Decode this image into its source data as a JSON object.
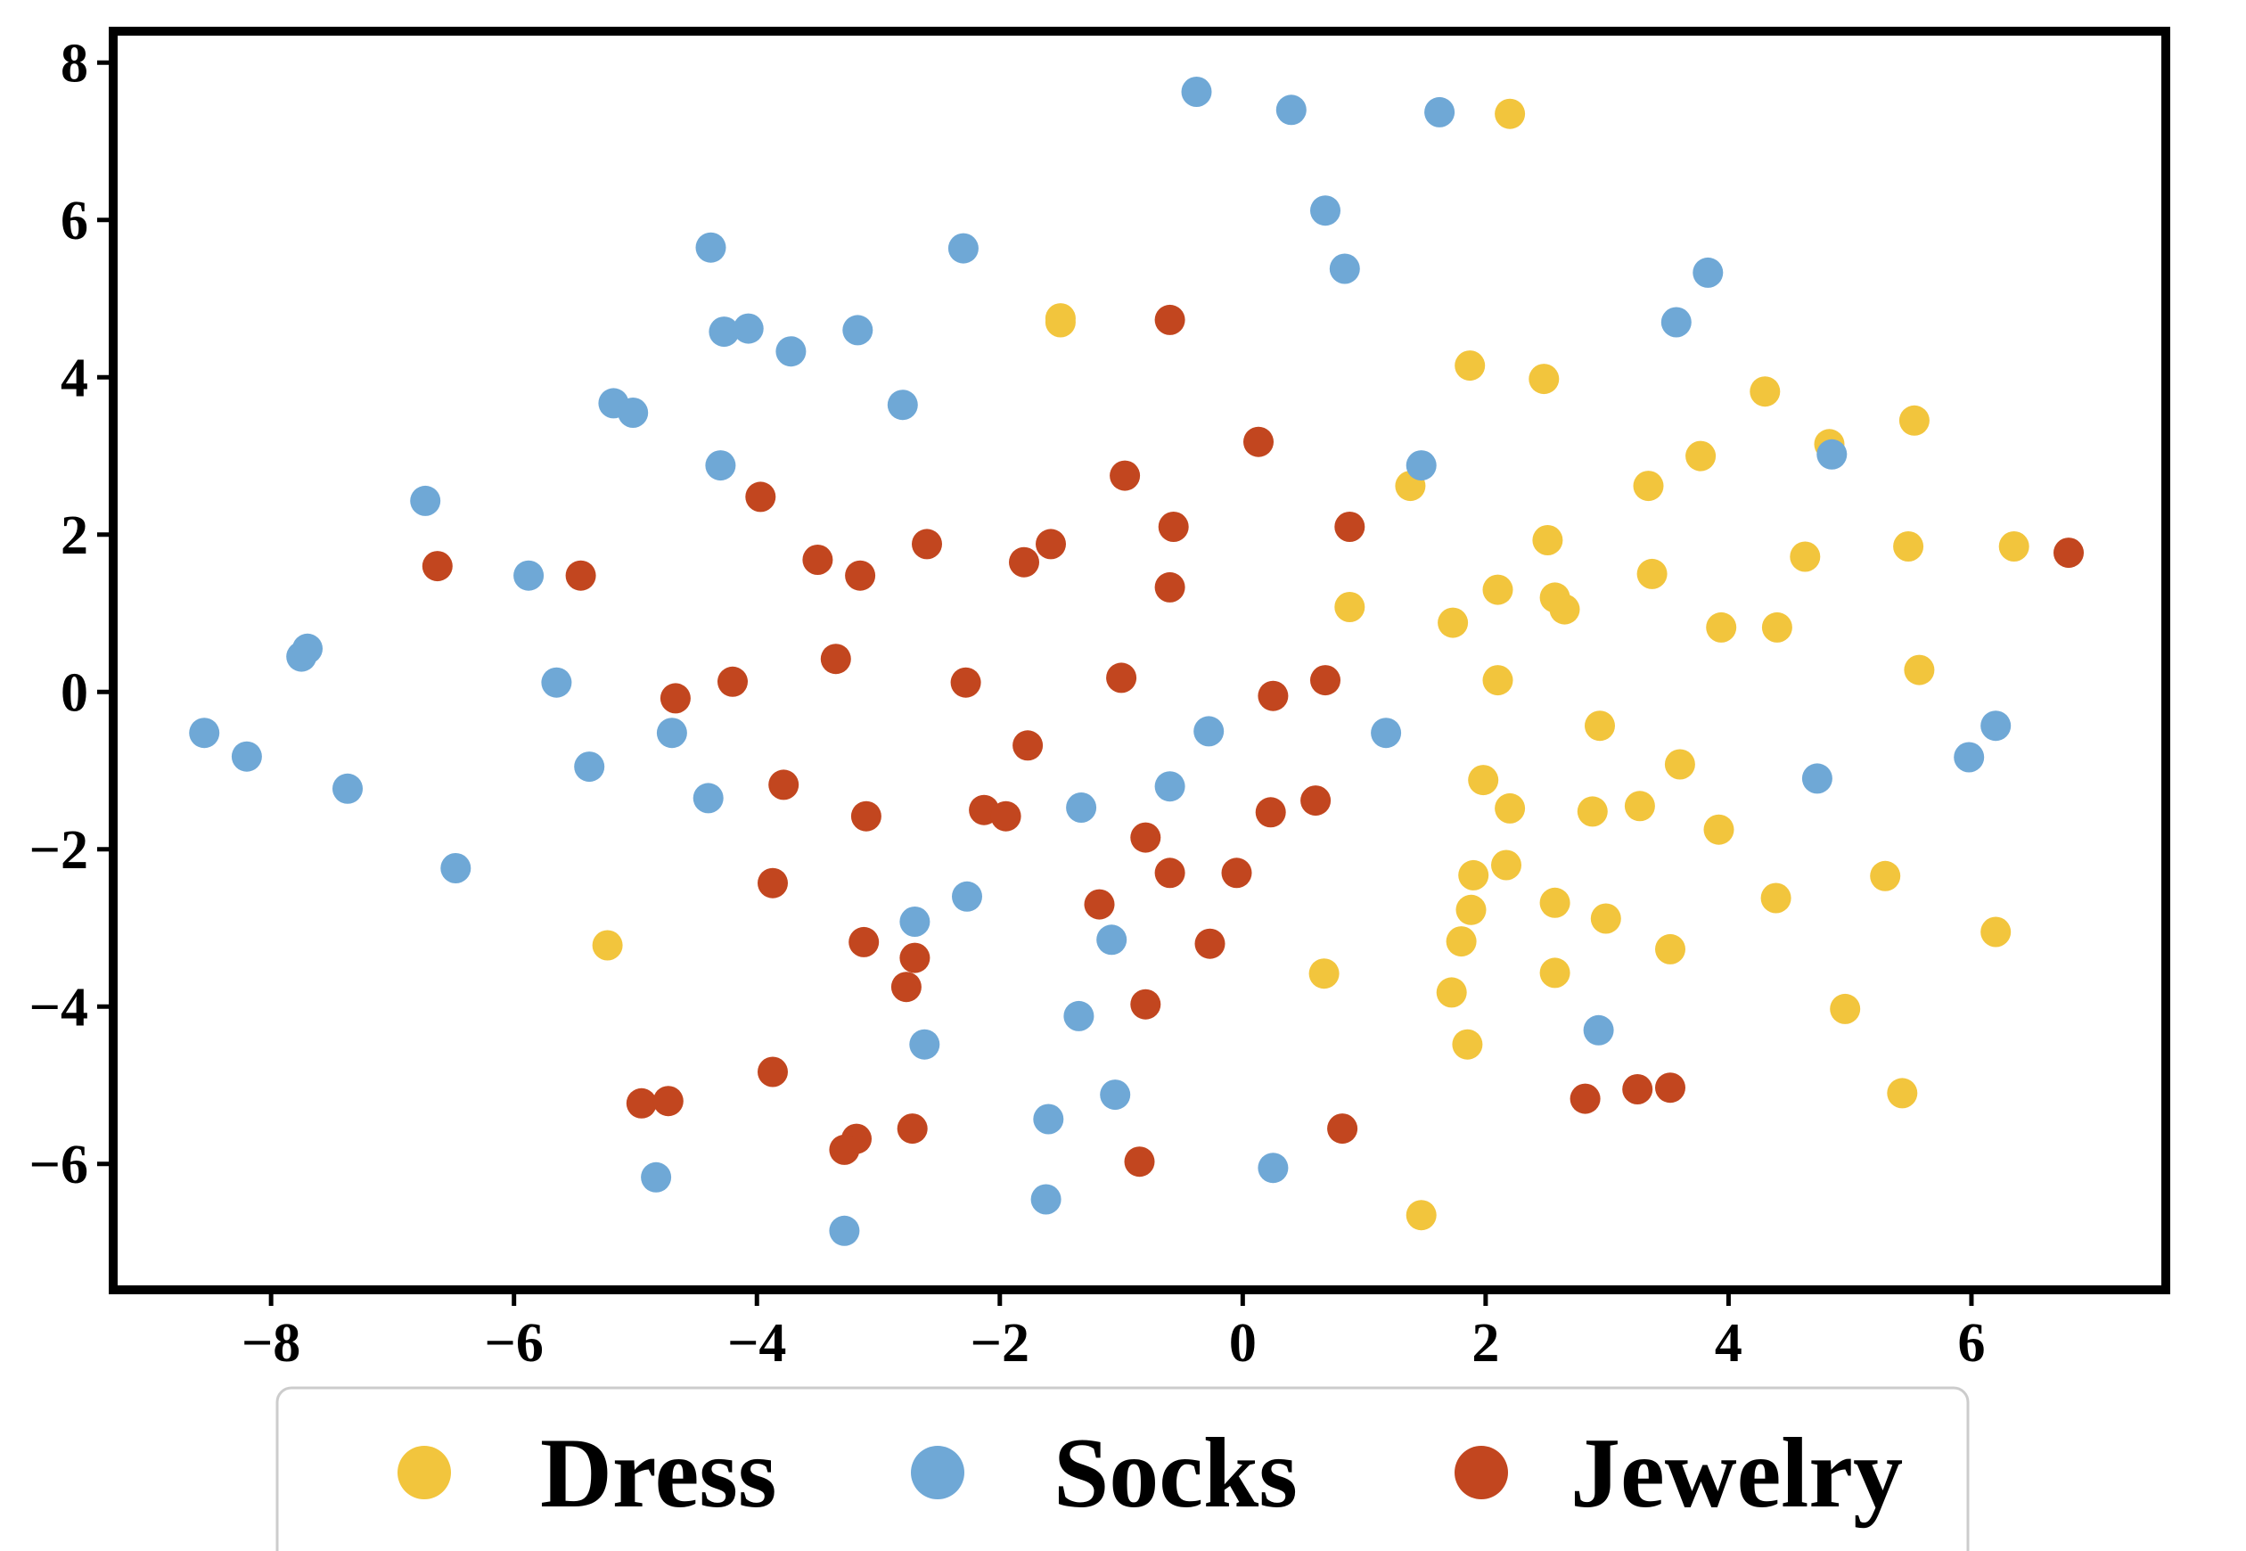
{
  "chart_data": {
    "type": "scatter",
    "title": "",
    "xlabel": "",
    "ylabel": "",
    "xlim": [
      -9.3,
      7.6
    ],
    "ylim": [
      -7.6,
      8.4
    ],
    "x_ticks": [
      -8,
      -6,
      -4,
      -2,
      0,
      2,
      4,
      6
    ],
    "y_ticks": [
      -6,
      -4,
      -2,
      0,
      2,
      4,
      6,
      8
    ],
    "x_tick_labels": [
      "−8",
      "−6",
      "−4",
      "−2",
      "0",
      "2",
      "4",
      "6"
    ],
    "y_tick_labels": [
      "−6",
      "−4",
      "−2",
      "0",
      "2",
      "4",
      "6",
      "8"
    ],
    "grid": false,
    "legend_position": "bottom",
    "series": [
      {
        "name": "Dress",
        "color": "#F2C53D",
        "points": [
          [
            2.2,
            7.35
          ],
          [
            -1.5,
            4.75
          ],
          [
            -1.5,
            4.7
          ],
          [
            1.87,
            4.15
          ],
          [
            2.48,
            3.98
          ],
          [
            4.3,
            3.82
          ],
          [
            4.83,
            3.15
          ],
          [
            5.53,
            3.45
          ],
          [
            3.77,
            3.0
          ],
          [
            1.38,
            2.62
          ],
          [
            3.34,
            2.62
          ],
          [
            2.51,
            1.93
          ],
          [
            5.48,
            1.85
          ],
          [
            6.35,
            1.85
          ],
          [
            4.63,
            1.72
          ],
          [
            3.37,
            1.5
          ],
          [
            2.1,
            1.3
          ],
          [
            2.57,
            1.2
          ],
          [
            2.65,
            1.05
          ],
          [
            0.88,
            1.08
          ],
          [
            1.73,
            0.88
          ],
          [
            3.94,
            0.82
          ],
          [
            4.4,
            0.82
          ],
          [
            5.57,
            0.28
          ],
          [
            2.1,
            0.15
          ],
          [
            2.94,
            -0.43
          ],
          [
            3.6,
            -0.92
          ],
          [
            1.98,
            -1.12
          ],
          [
            2.2,
            -1.48
          ],
          [
            2.88,
            -1.52
          ],
          [
            3.27,
            -1.45
          ],
          [
            3.92,
            -1.75
          ],
          [
            1.9,
            -2.33
          ],
          [
            2.17,
            -2.2
          ],
          [
            5.29,
            -2.34
          ],
          [
            1.88,
            -2.77
          ],
          [
            2.57,
            -2.68
          ],
          [
            2.99,
            -2.88
          ],
          [
            4.39,
            -2.62
          ],
          [
            -5.23,
            -3.22
          ],
          [
            1.8,
            -3.17
          ],
          [
            6.2,
            -3.05
          ],
          [
            3.52,
            -3.27
          ],
          [
            0.67,
            -3.58
          ],
          [
            2.57,
            -3.57
          ],
          [
            1.72,
            -3.82
          ],
          [
            4.96,
            -4.03
          ],
          [
            1.85,
            -4.48
          ],
          [
            5.43,
            -5.1
          ],
          [
            1.47,
            -6.65
          ]
        ]
      },
      {
        "name": "Socks",
        "color": "#6FA8D6",
        "points": [
          [
            -0.38,
            7.63
          ],
          [
            0.4,
            7.4
          ],
          [
            1.62,
            7.37
          ],
          [
            0.68,
            6.12
          ],
          [
            -4.38,
            5.65
          ],
          [
            -2.3,
            5.64
          ],
          [
            0.84,
            5.38
          ],
          [
            3.83,
            5.33
          ],
          [
            -4.27,
            4.58
          ],
          [
            -4.07,
            4.62
          ],
          [
            -3.17,
            4.6
          ],
          [
            -3.72,
            4.33
          ],
          [
            3.57,
            4.7
          ],
          [
            -5.18,
            3.67
          ],
          [
            -5.02,
            3.55
          ],
          [
            -2.8,
            3.65
          ],
          [
            -4.3,
            2.88
          ],
          [
            1.47,
            2.88
          ],
          [
            4.85,
            3.02
          ],
          [
            -6.73,
            2.43
          ],
          [
            -5.88,
            1.48
          ],
          [
            -7.75,
            0.45
          ],
          [
            -7.7,
            0.55
          ],
          [
            -5.65,
            0.12
          ],
          [
            -8.55,
            -0.52
          ],
          [
            -8.2,
            -0.82
          ],
          [
            -7.37,
            -1.23
          ],
          [
            -5.38,
            -0.95
          ],
          [
            -4.7,
            -0.52
          ],
          [
            -0.28,
            -0.5
          ],
          [
            1.18,
            -0.52
          ],
          [
            6.2,
            -0.43
          ],
          [
            5.98,
            -0.83
          ],
          [
            -4.4,
            -1.35
          ],
          [
            -0.6,
            -1.2
          ],
          [
            -1.33,
            -1.47
          ],
          [
            4.73,
            -1.1
          ],
          [
            -6.48,
            -2.24
          ],
          [
            -2.27,
            -2.6
          ],
          [
            -2.7,
            -2.92
          ],
          [
            -1.08,
            -3.15
          ],
          [
            -2.62,
            -4.48
          ],
          [
            -1.35,
            -4.12
          ],
          [
            2.93,
            -4.3
          ],
          [
            -1.05,
            -5.12
          ],
          [
            -1.6,
            -5.43
          ],
          [
            -4.83,
            -6.17
          ],
          [
            0.25,
            -6.05
          ],
          [
            -1.62,
            -6.45
          ],
          [
            -3.28,
            -6.85
          ]
        ]
      },
      {
        "name": "Jewelry",
        "color": "#C2461F",
        "points": [
          [
            -0.6,
            4.73
          ],
          [
            0.13,
            3.18
          ],
          [
            -0.97,
            2.75
          ],
          [
            -3.97,
            2.48
          ],
          [
            -0.57,
            2.1
          ],
          [
            0.88,
            2.1
          ],
          [
            -2.6,
            1.88
          ],
          [
            -1.58,
            1.88
          ],
          [
            -3.5,
            1.68
          ],
          [
            -1.8,
            1.65
          ],
          [
            -6.63,
            1.6
          ],
          [
            -5.45,
            1.48
          ],
          [
            -3.15,
            1.48
          ],
          [
            -0.6,
            1.33
          ],
          [
            6.8,
            1.77
          ],
          [
            -3.35,
            0.42
          ],
          [
            -4.2,
            0.13
          ],
          [
            -2.28,
            0.12
          ],
          [
            -1.0,
            0.18
          ],
          [
            0.68,
            0.15
          ],
          [
            -4.67,
            -0.08
          ],
          [
            0.25,
            -0.05
          ],
          [
            -1.77,
            -0.68
          ],
          [
            -3.78,
            -1.18
          ],
          [
            -2.13,
            -1.5
          ],
          [
            -1.95,
            -1.58
          ],
          [
            -3.1,
            -1.58
          ],
          [
            0.23,
            -1.53
          ],
          [
            0.6,
            -1.38
          ],
          [
            -0.8,
            -1.85
          ],
          [
            -3.87,
            -2.43
          ],
          [
            -0.6,
            -2.3
          ],
          [
            -0.05,
            -2.3
          ],
          [
            -1.18,
            -2.7
          ],
          [
            -3.12,
            -3.18
          ],
          [
            -0.27,
            -3.2
          ],
          [
            -2.7,
            -3.38
          ],
          [
            -2.77,
            -3.75
          ],
          [
            -0.8,
            -3.97
          ],
          [
            -3.87,
            -4.83
          ],
          [
            -4.95,
            -5.23
          ],
          [
            -4.73,
            -5.2
          ],
          [
            -2.72,
            -5.55
          ],
          [
            0.82,
            -5.55
          ],
          [
            2.82,
            -5.17
          ],
          [
            3.25,
            -5.05
          ],
          [
            3.52,
            -5.03
          ],
          [
            -3.18,
            -5.68
          ],
          [
            -3.28,
            -5.82
          ],
          [
            -0.85,
            -5.97
          ]
        ]
      }
    ]
  }
}
